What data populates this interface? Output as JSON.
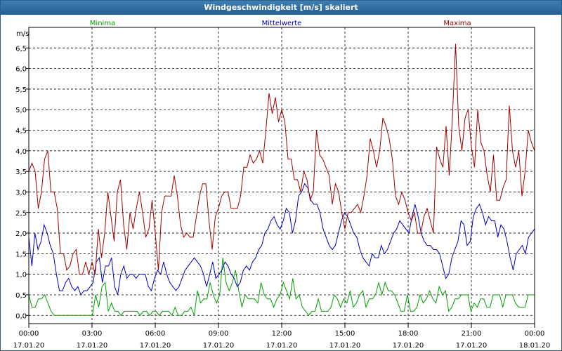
{
  "window": {
    "title": "Windgeschwindigkeit [m/s] skaliert"
  },
  "chart_data": {
    "type": "line",
    "ylabel": "m/s",
    "ylim": [
      -0.2,
      7.0
    ],
    "yticks": [
      0.0,
      0.5,
      1.0,
      1.5,
      2.0,
      2.5,
      3.0,
      3.5,
      4.0,
      4.5,
      5.0,
      5.5,
      6.0,
      6.5
    ],
    "ytick_labels": [
      "0,0",
      "0,5",
      "1,0",
      "1,5",
      "2,0",
      "2,5",
      "3,0",
      "3,5",
      "4,0",
      "4,5",
      "5,0",
      "5,5",
      "6,0",
      "6,5"
    ],
    "xlim": [
      0,
      24
    ],
    "xticks": [
      {
        "pos": 0,
        "time": "00:00",
        "date": "17.01.20"
      },
      {
        "pos": 3,
        "time": "03:00",
        "date": "17.01.20"
      },
      {
        "pos": 6,
        "time": "06:00",
        "date": "17.01.20"
      },
      {
        "pos": 9,
        "time": "09:00",
        "date": "17.01.20"
      },
      {
        "pos": 12,
        "time": "12:00",
        "date": "17.01.20"
      },
      {
        "pos": 15,
        "time": "15:00",
        "date": "17.01.20"
      },
      {
        "pos": 18,
        "time": "18:00",
        "date": "17.01.20"
      },
      {
        "pos": 21,
        "time": "21:00",
        "date": "17.01.20"
      },
      {
        "pos": 24,
        "time": "00:00",
        "date": "18.01.20"
      }
    ],
    "grid": true,
    "legend": "top",
    "series": [
      {
        "name": "Minima",
        "color": "#00a000",
        "values": [
          0.5,
          0.2,
          0.2,
          0.4,
          0.4,
          0.5,
          0.3,
          0.1,
          0.0,
          0.0,
          0.0,
          0.0,
          0.0,
          0.0,
          0.0,
          0.0,
          0.0,
          0.0,
          0.0,
          0.0,
          0.0,
          0.5,
          0.2,
          0.7,
          0.8,
          0.1,
          0.3,
          0.1,
          0.1,
          0.0,
          0.1,
          0.1,
          0.1,
          0.1,
          0.1,
          0.0,
          0.1,
          0.1,
          0.0,
          0.1,
          0.1,
          0.0,
          0.1,
          0.1,
          0.1,
          0.0,
          0.2,
          0.0,
          0.0,
          0.1,
          0.1,
          0.2,
          0.0,
          0.6,
          0.3,
          0.4,
          0.4,
          0.8,
          0.5,
          0.3,
          0.5,
          1.4,
          0.8,
          0.6,
          0.8,
          1.1,
          0.6,
          0.2,
          0.5,
          0.4,
          0.4,
          0.4,
          0.3,
          0.8,
          0.5,
          0.4,
          0.4,
          0.2,
          0.4,
          0.5,
          0.8,
          0.6,
          0.4,
          0.9,
          0.4,
          0.5,
          0.2,
          0.1,
          0.0,
          0.1,
          0.1,
          0.4,
          0.1,
          0.1,
          0.1,
          0.2,
          0.5,
          0.4,
          0.2,
          0.4,
          0.3,
          0.6,
          0.2,
          0.3,
          0.5,
          0.6,
          0.2,
          0.4,
          0.4,
          0.5,
          0.8,
          0.5,
          0.8,
          0.6,
          0.6,
          0.5,
          0.3,
          0.1,
          0.1,
          0.5,
          0.1,
          0.1,
          0.2,
          0.5,
          0.3,
          0.4,
          0.6,
          0.4,
          0.3,
          0.7,
          0.5,
          0.6,
          0.1,
          0.2,
          0.4,
          0.4,
          0.5,
          0.5,
          0.5,
          0.1,
          0.3,
          0.2,
          0.4,
          0.4,
          0.2,
          0.2,
          0.5,
          0.5,
          0.5,
          0.2,
          0.5,
          0.5,
          0.5,
          0.3,
          0.2,
          0.2,
          0.2,
          0.5,
          0.5,
          0.5
        ]
      },
      {
        "name": "Mittelwerte",
        "color": "#0000c0",
        "values": [
          1.9,
          1.2,
          2.0,
          1.6,
          1.8,
          2.2,
          2.0,
          1.7,
          1.5,
          1.0,
          0.6,
          0.6,
          0.8,
          0.9,
          0.7,
          0.6,
          0.7,
          0.5,
          0.6,
          0.6,
          0.7,
          0.8,
          1.3,
          1.4,
          0.8,
          1.2,
          1.2,
          1.4,
          0.7,
          0.5,
          1.0,
          1.2,
          0.9,
          1.0,
          1.0,
          0.9,
          1.0,
          1.0,
          1.0,
          0.7,
          0.6,
          0.9,
          1.1,
          1.0,
          1.3,
          1.0,
          0.8,
          0.7,
          0.6,
          0.7,
          0.9,
          1.1,
          1.2,
          1.3,
          1.4,
          1.3,
          1.2,
          1.0,
          0.7,
          1.0,
          1.3,
          0.9,
          1.0,
          1.1,
          1.3,
          1.2,
          1.0,
          0.9,
          0.7,
          0.8,
          1.1,
          1.2,
          1.1,
          1.3,
          1.4,
          1.6,
          1.7,
          2.0,
          2.1,
          2.3,
          2.4,
          2.2,
          2.1,
          2.3,
          2.6,
          2.5,
          2.0,
          2.3,
          2.9,
          3.0,
          3.2,
          3.1,
          2.8,
          2.7,
          2.7,
          2.5,
          2.1,
          1.9,
          1.7,
          1.6,
          1.7,
          2.0,
          2.3,
          2.5,
          2.4,
          2.2,
          2.0,
          1.9,
          1.6,
          1.4,
          1.3,
          1.2,
          1.5,
          1.4,
          1.4,
          1.7,
          1.5,
          1.6,
          1.8,
          2.0,
          2.1,
          2.3,
          2.2,
          2.1,
          2.0,
          2.4,
          2.7,
          2.4,
          2.0,
          1.8,
          1.7,
          1.7,
          1.6,
          1.6,
          1.5,
          1.2,
          0.9,
          1.0,
          1.4,
          1.6,
          1.8,
          2.3,
          2.2,
          1.7,
          1.8,
          2.4,
          2.6,
          2.7,
          2.5,
          2.2,
          2.4,
          2.3,
          2.3,
          1.9,
          2.2,
          2.1,
          1.8,
          1.4,
          1.1,
          1.5,
          1.6,
          1.7,
          1.5,
          1.9,
          2.0,
          2.1
        ]
      },
      {
        "name": "Maxima",
        "color": "#a00000",
        "values": [
          3.5,
          3.7,
          3.5,
          2.6,
          3.0,
          3.8,
          4.0,
          3.0,
          3.0,
          2.6,
          1.5,
          1.5,
          1.1,
          1.2,
          1.5,
          1.6,
          1.0,
          1.0,
          1.3,
          1.0,
          1.3,
          1.0,
          2.1,
          1.4,
          2.0,
          3.0,
          2.4,
          1.8,
          3.0,
          3.3,
          2.2,
          1.6,
          2.5,
          2.1,
          2.6,
          3.0,
          2.5,
          1.9,
          2.1,
          2.8,
          2.0,
          1.1,
          2.5,
          2.9,
          2.9,
          2.9,
          3.4,
          2.9,
          2.2,
          1.9,
          2.0,
          1.9,
          1.9,
          2.4,
          2.9,
          3.2,
          3.2,
          2.3,
          1.6,
          2.4,
          2.6,
          2.9,
          3.0,
          3.0,
          2.6,
          2.6,
          2.6,
          2.9,
          3.6,
          3.6,
          3.9,
          3.7,
          3.8,
          4.0,
          3.7,
          4.5,
          5.4,
          4.9,
          5.3,
          4.7,
          5.0,
          4.7,
          3.8,
          3.8,
          3.3,
          3.3,
          3.0,
          3.5,
          3.3,
          2.8,
          3.0,
          4.5,
          3.9,
          3.8,
          3.6,
          3.4,
          2.7,
          3.2,
          3.0,
          2.5,
          2.1,
          2.5,
          2.5,
          2.6,
          2.7,
          2.5,
          2.9,
          3.4,
          4.3,
          4.0,
          3.6,
          4.0,
          4.8,
          4.6,
          4.3,
          3.8,
          2.9,
          2.7,
          3.0,
          2.8,
          2.5,
          2.3,
          2.5,
          2.0,
          2.0,
          2.4,
          2.6,
          2.3,
          2.0,
          4.1,
          3.8,
          3.6,
          4.6,
          3.4,
          4.8,
          6.6,
          4.6,
          4.0,
          4.8,
          5.0,
          4.1,
          3.6,
          5.0,
          4.2,
          4.0,
          3.4,
          3.0,
          3.9,
          2.8,
          2.8,
          3.1,
          3.3,
          5.1,
          4.0,
          3.6,
          4.0,
          2.9,
          3.5,
          4.5,
          4.2,
          4.0
        ]
      }
    ]
  }
}
